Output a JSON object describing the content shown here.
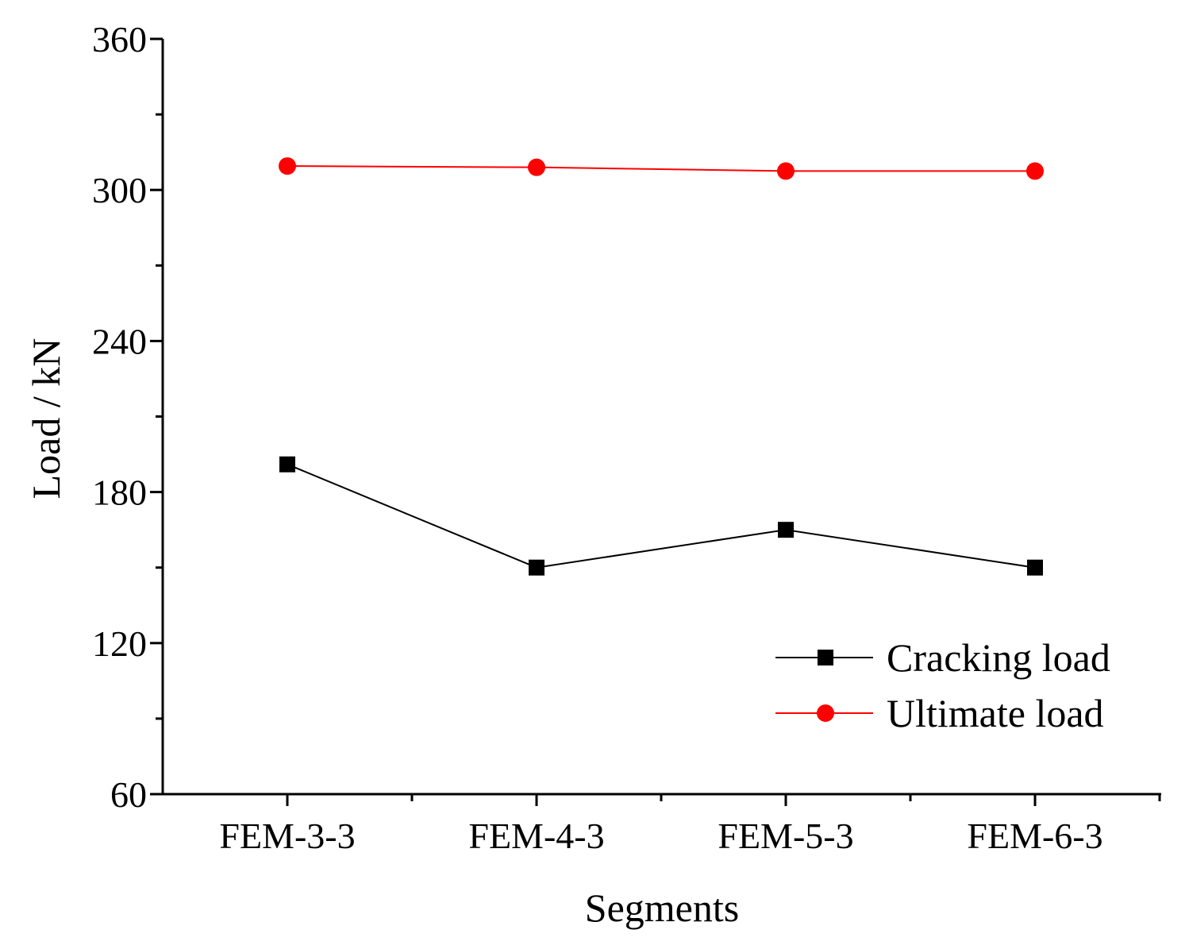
{
  "chart_data": {
    "type": "line",
    "title": "",
    "xlabel": "Segments",
    "ylabel": "Load / kN",
    "categories": [
      "FEM-3-3",
      "FEM-4-3",
      "FEM-5-3",
      "FEM-6-3"
    ],
    "ylim": [
      60,
      360
    ],
    "yticks": [
      60,
      120,
      180,
      240,
      300,
      360
    ],
    "grid": false,
    "legend_position": "bottom-right",
    "series": [
      {
        "name": "Cracking load",
        "values": [
          191,
          150,
          165,
          150
        ],
        "color": "#000000",
        "marker": "square"
      },
      {
        "name": "Ultimate load",
        "values": [
          309.5,
          309,
          307.5,
          307.5
        ],
        "color": "#ff0000",
        "marker": "circle"
      }
    ]
  }
}
